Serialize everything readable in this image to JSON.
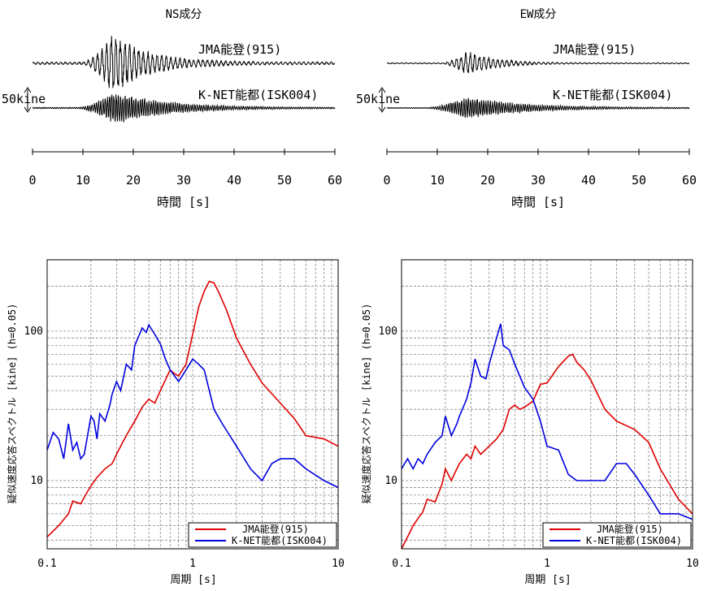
{
  "chart_data": [
    {
      "type": "line",
      "panel": "waveform",
      "title": "NS成分",
      "xlabel": "時間 [s]",
      "xlim": [
        0,
        60
      ],
      "xticks": [
        "0",
        "10",
        "20",
        "30",
        "40",
        "50",
        "60"
      ],
      "scale_label": "50kine",
      "series": [
        {
          "name": "JMA能登(915)",
          "peak_amplitude_kine": 75,
          "main_shaking_s": [
            12,
            20
          ],
          "approx_duration_s": 60
        },
        {
          "name": "K-NET能都(ISK004)",
          "peak_amplitude_kine": 40,
          "main_shaking_s": [
            11,
            22
          ],
          "approx_duration_s": 60
        }
      ]
    },
    {
      "type": "line",
      "panel": "waveform",
      "title": "EW成分",
      "xlabel": "時間 [s]",
      "xlim": [
        0,
        60
      ],
      "xticks": [
        "0",
        "10",
        "20",
        "30",
        "40",
        "50",
        "60"
      ],
      "scale_label": "50kine",
      "series": [
        {
          "name": "JMA能登(915)",
          "peak_amplitude_kine": 30,
          "main_shaking_s": [
            13,
            19
          ],
          "approx_duration_s": 60
        },
        {
          "name": "K-NET能都(ISK004)",
          "peak_amplitude_kine": 28,
          "main_shaking_s": [
            10,
            22
          ],
          "approx_duration_s": 60
        }
      ]
    },
    {
      "type": "line",
      "panel": "spectrum",
      "xlabel": "周期 [s]",
      "ylabel": "疑似速度応答スペクトル [kine] (h=0.05)",
      "xscale": "log",
      "yscale": "log",
      "xlim": [
        0.1,
        10
      ],
      "ylim": [
        3.5,
        300
      ],
      "xticks": [
        "0.1",
        "1",
        "10"
      ],
      "yticks": [
        "10",
        "100"
      ],
      "grid": true,
      "legend": "bottom-right",
      "series": [
        {
          "name": "JMA能登(915)",
          "color": "#e00000",
          "x": [
            0.1,
            0.12,
            0.14,
            0.15,
            0.17,
            0.19,
            0.2,
            0.22,
            0.25,
            0.28,
            0.3,
            0.33,
            0.36,
            0.4,
            0.45,
            0.5,
            0.55,
            0.6,
            0.7,
            0.75,
            0.8,
            0.9,
            1.0,
            1.1,
            1.2,
            1.3,
            1.4,
            1.5,
            1.7,
            2.0,
            2.5,
            3.0,
            4.0,
            5.0,
            6.0,
            8.0,
            10.0
          ],
          "y": [
            4.2,
            5.0,
            6.0,
            7.3,
            7.0,
            8.5,
            9.2,
            10.5,
            12,
            13,
            15,
            18,
            21,
            25,
            31,
            35,
            33,
            40,
            55,
            52,
            50,
            60,
            95,
            145,
            185,
            215,
            210,
            185,
            140,
            90,
            60,
            45,
            33,
            26,
            20,
            19,
            17
          ]
        },
        {
          "name": "K-NET能都(ISK004)",
          "color": "#0000e0",
          "x": [
            0.1,
            0.11,
            0.12,
            0.13,
            0.14,
            0.15,
            0.16,
            0.17,
            0.18,
            0.2,
            0.21,
            0.22,
            0.23,
            0.25,
            0.27,
            0.28,
            0.3,
            0.32,
            0.35,
            0.38,
            0.4,
            0.45,
            0.48,
            0.5,
            0.55,
            0.6,
            0.65,
            0.7,
            0.8,
            0.9,
            1.0,
            1.1,
            1.2,
            1.4,
            1.6,
            2.0,
            2.5,
            3.0,
            3.5,
            4.0,
            5.0,
            6.0,
            8.0,
            10.0
          ],
          "y": [
            16,
            21,
            19,
            14,
            24,
            16,
            18,
            14,
            15,
            27,
            25,
            19,
            28,
            25,
            32,
            38,
            46,
            40,
            60,
            55,
            80,
            105,
            98,
            110,
            95,
            82,
            65,
            55,
            46,
            55,
            65,
            60,
            55,
            30,
            24,
            17,
            12,
            10,
            13,
            14,
            14,
            12,
            10,
            9
          ]
        }
      ]
    },
    {
      "type": "line",
      "panel": "spectrum",
      "xlabel": "周期 [s]",
      "ylabel": "疑似速度応答スペクトル [kine] (h=0.05)",
      "xscale": "log",
      "yscale": "log",
      "xlim": [
        0.1,
        10
      ],
      "ylim": [
        3.5,
        300
      ],
      "xticks": [
        "0.1",
        "1",
        "10"
      ],
      "yticks": [
        "10",
        "100"
      ],
      "grid": true,
      "legend": "bottom-right",
      "series": [
        {
          "name": "JMA能登(915)",
          "color": "#e00000",
          "x": [
            0.1,
            0.11,
            0.12,
            0.13,
            0.14,
            0.15,
            0.17,
            0.19,
            0.2,
            0.22,
            0.23,
            0.25,
            0.28,
            0.3,
            0.32,
            0.35,
            0.4,
            0.45,
            0.5,
            0.55,
            0.6,
            0.65,
            0.7,
            0.8,
            0.9,
            1.0,
            1.2,
            1.4,
            1.5,
            1.6,
            1.8,
            2.0,
            2.5,
            3.0,
            4.0,
            5.0,
            6.0,
            8.0,
            10.0
          ],
          "y": [
            3.2,
            4.2,
            5.0,
            5.6,
            6.2,
            7.5,
            7.2,
            9.5,
            12,
            10,
            11,
            13,
            15,
            14,
            17,
            15,
            17,
            19,
            22,
            30,
            32,
            30,
            31,
            34,
            44,
            45,
            58,
            68,
            70,
            62,
            55,
            47,
            30,
            25,
            22,
            18,
            12,
            7.5,
            6
          ]
        },
        {
          "name": "K-NET能都(ISK004)",
          "color": "#0000e0",
          "x": [
            0.1,
            0.11,
            0.12,
            0.13,
            0.14,
            0.15,
            0.17,
            0.19,
            0.2,
            0.22,
            0.24,
            0.25,
            0.28,
            0.3,
            0.32,
            0.35,
            0.38,
            0.4,
            0.45,
            0.48,
            0.5,
            0.55,
            0.6,
            0.7,
            0.8,
            0.9,
            1.0,
            1.2,
            1.4,
            1.6,
            2.0,
            2.5,
            3.0,
            3.5,
            4.0,
            5.0,
            6.0,
            8.0,
            10.0
          ],
          "y": [
            12,
            14,
            12,
            14,
            13,
            15,
            18,
            20,
            27,
            20,
            24,
            27,
            35,
            45,
            65,
            50,
            48,
            60,
            90,
            112,
            80,
            75,
            60,
            42,
            35,
            25,
            17,
            16,
            11,
            10,
            10,
            10,
            13,
            13,
            11,
            8,
            6,
            6,
            5.5
          ]
        }
      ]
    }
  ]
}
